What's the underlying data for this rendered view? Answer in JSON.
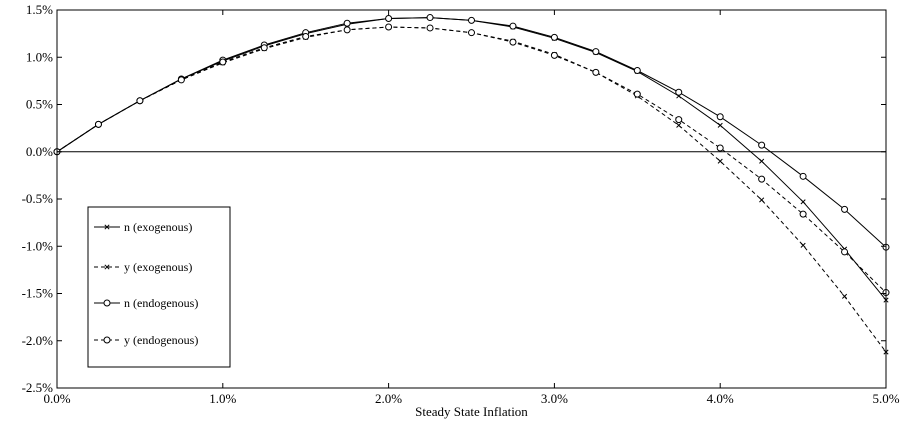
{
  "chart_data": {
    "type": "line",
    "xlabel": "Steady State Inflation",
    "x": [
      0,
      0.25,
      0.5,
      0.75,
      1.0,
      1.25,
      1.5,
      1.75,
      2.0,
      2.25,
      2.5,
      2.75,
      3.0,
      3.25,
      3.5,
      3.75,
      4.0,
      4.25,
      4.5,
      4.75,
      5.0
    ],
    "xlim": [
      0,
      5
    ],
    "ylim": [
      -2.5,
      1.5
    ],
    "x_ticks": [
      0,
      1,
      2,
      3,
      4,
      5
    ],
    "x_tick_labels": [
      "0.0%",
      "1.0%",
      "2.0%",
      "3.0%",
      "4.0%",
      "5.0%"
    ],
    "y_ticks": [
      1.5,
      1.0,
      0.5,
      0.0,
      -0.5,
      -1.0,
      -1.5,
      -2.0,
      -2.5
    ],
    "y_tick_labels": [
      "1.5%",
      "1.0%",
      "0.5%",
      "0.0%",
      "-0.5%",
      "-1.0%",
      "-1.5%",
      "-2.0%",
      "-2.5%"
    ],
    "grid": false,
    "zero_line": true,
    "legend_position": "left-lower",
    "series": [
      {
        "name": "n (exogenous)",
        "line": "solid",
        "marker": "x",
        "values": [
          0.0,
          0.29,
          0.54,
          0.77,
          0.96,
          1.12,
          1.25,
          1.35,
          1.41,
          1.42,
          1.39,
          1.32,
          1.2,
          1.05,
          0.85,
          0.59,
          0.28,
          -0.1,
          -0.53,
          -1.03,
          -1.57
        ]
      },
      {
        "name": "y (exogenous)",
        "line": "dashed",
        "marker": "x",
        "values": [
          0.0,
          0.29,
          0.54,
          0.76,
          0.94,
          1.09,
          1.21,
          1.29,
          1.32,
          1.31,
          1.26,
          1.17,
          1.03,
          0.84,
          0.59,
          0.28,
          -0.1,
          -0.51,
          -0.99,
          -1.53,
          -2.12
        ]
      },
      {
        "name": "n (endogenous)",
        "line": "solid",
        "marker": "o",
        "values": [
          0.0,
          0.29,
          0.54,
          0.77,
          0.97,
          1.13,
          1.26,
          1.36,
          1.41,
          1.42,
          1.39,
          1.33,
          1.21,
          1.06,
          0.86,
          0.63,
          0.37,
          0.07,
          -0.26,
          -0.61,
          -1.01
        ]
      },
      {
        "name": "y (endogenous)",
        "line": "dashed",
        "marker": "o",
        "values": [
          0.0,
          0.29,
          0.54,
          0.76,
          0.95,
          1.1,
          1.22,
          1.29,
          1.32,
          1.31,
          1.26,
          1.16,
          1.02,
          0.84,
          0.61,
          0.34,
          0.04,
          -0.29,
          -0.66,
          -1.06,
          -1.49
        ]
      }
    ]
  }
}
